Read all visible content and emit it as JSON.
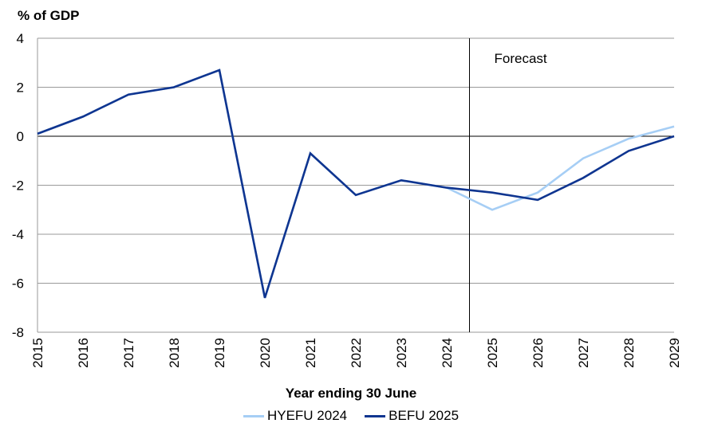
{
  "chart_data": {
    "type": "line",
    "ylabel": "% of GDP",
    "xlabel": "Year ending 30 June",
    "annotation": "Forecast",
    "categories": [
      "2015",
      "2016",
      "2017",
      "2018",
      "2019",
      "2020",
      "2021",
      "2022",
      "2023",
      "2024",
      "2025",
      "2026",
      "2027",
      "2028",
      "2029"
    ],
    "ylim": [
      -8,
      4
    ],
    "yticks": [
      4,
      2,
      0,
      -2,
      -4,
      -6,
      -8
    ],
    "forecast_divider_after": "2024",
    "grid": true,
    "legend_position": "bottom",
    "series": [
      {
        "name": "HYEFU 2024",
        "color": "#a6cef5",
        "values": [
          0.1,
          0.8,
          1.7,
          2.0,
          2.7,
          -6.6,
          -0.7,
          -2.4,
          -1.8,
          -2.1,
          -3.0,
          -2.3,
          -0.9,
          -0.1,
          0.4
        ]
      },
      {
        "name": "BEFU 2025",
        "color": "#0f3590",
        "values": [
          0.1,
          0.8,
          1.7,
          2.0,
          2.7,
          -6.6,
          -0.7,
          -2.4,
          -1.8,
          -2.1,
          -2.3,
          -2.6,
          -1.7,
          -0.6,
          0.0
        ]
      }
    ]
  }
}
